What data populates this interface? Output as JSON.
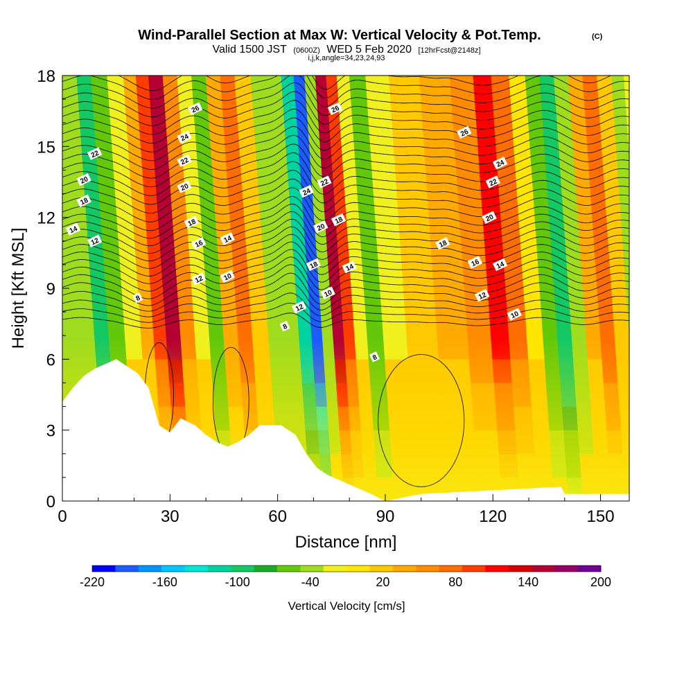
{
  "chart_data": {
    "type": "heatmap",
    "title": "Wind-Parallel Section at Max W: Vertical Velocity & Pot.Temp.",
    "title_badge": "(C)",
    "subtitle": {
      "prefix": "Valid 1500 JST",
      "utc": "(0600Z)",
      "date": "WED 5 Feb 2020",
      "forecast": "[12hrFcst@2148z]"
    },
    "subtitle2": "i,j,k,angle=34,23,24,93",
    "xlabel": "Distance [nm]",
    "ylabel": "Height [Kft MSL]",
    "xlim": [
      0,
      158
    ],
    "ylim": [
      0,
      18
    ],
    "x_ticks": [
      0,
      30,
      60,
      90,
      120,
      150
    ],
    "y_ticks": [
      0,
      3,
      6,
      9,
      12,
      15,
      18
    ],
    "colorbar": {
      "label": "Vertical Velocity [cm/s]",
      "range": [
        -220,
        200
      ],
      "step": 20,
      "tick_labels": [
        -220,
        -160,
        -100,
        -40,
        20,
        80,
        140,
        200
      ],
      "colors": [
        "#0000ff",
        "#1c5cff",
        "#0096ff",
        "#00c8ff",
        "#00e6d2",
        "#00d2a0",
        "#14c864",
        "#1eaa28",
        "#64c80a",
        "#a0dc1e",
        "#f0f01e",
        "#ffe600",
        "#ffc800",
        "#ffaa00",
        "#ff8c00",
        "#ff6e00",
        "#ff3c00",
        "#ff0000",
        "#d70000",
        "#b40032",
        "#960064",
        "#6e0096"
      ]
    },
    "velocity_columns": [
      {
        "x": 2,
        "w": -40
      },
      {
        "x": 6,
        "w": -100
      },
      {
        "x": 10,
        "w": -60
      },
      {
        "x": 15,
        "w": -20
      },
      {
        "x": 19,
        "w": 40
      },
      {
        "x": 22,
        "w": 100
      },
      {
        "x": 26,
        "w": 170
      },
      {
        "x": 30,
        "w": 60
      },
      {
        "x": 34,
        "w": -20
      },
      {
        "x": 38,
        "w": -60
      },
      {
        "x": 42,
        "w": 50
      },
      {
        "x": 46,
        "w": 90
      },
      {
        "x": 50,
        "w": 20
      },
      {
        "x": 55,
        "w": -30
      },
      {
        "x": 59,
        "w": -40
      },
      {
        "x": 63,
        "w": -120
      },
      {
        "x": 66,
        "w": -200
      },
      {
        "x": 69,
        "w": -40
      },
      {
        "x": 72,
        "w": 170
      },
      {
        "x": 75,
        "w": 100
      },
      {
        "x": 78,
        "w": -20
      },
      {
        "x": 82,
        "w": -60
      },
      {
        "x": 87,
        "w": -10
      },
      {
        "x": 95,
        "w": 20
      },
      {
        "x": 104,
        "w": 40
      },
      {
        "x": 112,
        "w": 70
      },
      {
        "x": 117,
        "w": 120
      },
      {
        "x": 122,
        "w": 80
      },
      {
        "x": 127,
        "w": 10
      },
      {
        "x": 131,
        "w": -60
      },
      {
        "x": 135,
        "w": -100
      },
      {
        "x": 139,
        "w": -40
      },
      {
        "x": 143,
        "w": 40
      },
      {
        "x": 147,
        "w": 90
      },
      {
        "x": 151,
        "w": 30
      },
      {
        "x": 155,
        "w": -40
      },
      {
        "x": 158,
        "w": -20
      }
    ],
    "terrain": [
      [
        0,
        4.2
      ],
      [
        3,
        4.8
      ],
      [
        6,
        5.3
      ],
      [
        9,
        5.6
      ],
      [
        12,
        5.8
      ],
      [
        15,
        6.0
      ],
      [
        21,
        5.4
      ],
      [
        24,
        4.8
      ],
      [
        27,
        3.2
      ],
      [
        30,
        2.9
      ],
      [
        33,
        3.5
      ],
      [
        37,
        3.2
      ],
      [
        40,
        2.8
      ],
      [
        43,
        2.5
      ],
      [
        46,
        2.3
      ],
      [
        49,
        2.5
      ],
      [
        52,
        2.8
      ],
      [
        55,
        3.2
      ],
      [
        61,
        3.2
      ],
      [
        65,
        2.8
      ],
      [
        68,
        2.0
      ],
      [
        71,
        1.4
      ],
      [
        74,
        1.1
      ],
      [
        77,
        0.9
      ],
      [
        80,
        0.7
      ],
      [
        83,
        0.5
      ],
      [
        86,
        0.3
      ],
      [
        90,
        0.0
      ],
      [
        100,
        0.3
      ],
      [
        139,
        0.6
      ],
      [
        140,
        0.3
      ],
      [
        158,
        0.3
      ]
    ],
    "theta_contours": {
      "levels_visible": [
        8,
        10,
        12,
        14,
        16,
        18,
        20,
        22,
        24,
        26
      ],
      "labels": [
        {
          "text": "8",
          "x": 21,
          "y": 8.6
        },
        {
          "text": "8",
          "x": 62,
          "y": 7.4
        },
        {
          "text": "8",
          "x": 87,
          "y": 6.1
        },
        {
          "text": "10",
          "x": 46,
          "y": 9.5
        },
        {
          "text": "10",
          "x": 74,
          "y": 8.8
        },
        {
          "text": "10",
          "x": 126,
          "y": 7.9
        },
        {
          "text": "12",
          "x": 9,
          "y": 11.0
        },
        {
          "text": "12",
          "x": 38,
          "y": 9.4
        },
        {
          "text": "12",
          "x": 66,
          "y": 8.2
        },
        {
          "text": "12",
          "x": 117,
          "y": 8.7
        },
        {
          "text": "14",
          "x": 3,
          "y": 11.5
        },
        {
          "text": "14",
          "x": 46,
          "y": 11.1
        },
        {
          "text": "14",
          "x": 80,
          "y": 9.9
        },
        {
          "text": "14",
          "x": 122,
          "y": 10.0
        },
        {
          "text": "16",
          "x": 38,
          "y": 10.9
        },
        {
          "text": "16",
          "x": 115,
          "y": 10.1
        },
        {
          "text": "18",
          "x": 6,
          "y": 12.7
        },
        {
          "text": "18",
          "x": 36,
          "y": 11.8
        },
        {
          "text": "18",
          "x": 70,
          "y": 10.0
        },
        {
          "text": "18",
          "x": 77,
          "y": 11.9
        },
        {
          "text": "18",
          "x": 106,
          "y": 10.9
        },
        {
          "text": "20",
          "x": 6,
          "y": 13.6
        },
        {
          "text": "20",
          "x": 34,
          "y": 13.3
        },
        {
          "text": "20",
          "x": 72,
          "y": 11.6
        },
        {
          "text": "20",
          "x": 119,
          "y": 12.0
        },
        {
          "text": "22",
          "x": 9,
          "y": 14.7
        },
        {
          "text": "22",
          "x": 34,
          "y": 14.4
        },
        {
          "text": "22",
          "x": 73,
          "y": 13.5
        },
        {
          "text": "22",
          "x": 120,
          "y": 13.5
        },
        {
          "text": "24",
          "x": 34,
          "y": 15.4
        },
        {
          "text": "24",
          "x": 68,
          "y": 13.1
        },
        {
          "text": "24",
          "x": 122,
          "y": 14.3
        },
        {
          "text": "26",
          "x": 37,
          "y": 16.6
        },
        {
          "text": "26",
          "x": 76,
          "y": 16.6
        },
        {
          "text": "26",
          "x": 112,
          "y": 15.6
        }
      ]
    }
  }
}
